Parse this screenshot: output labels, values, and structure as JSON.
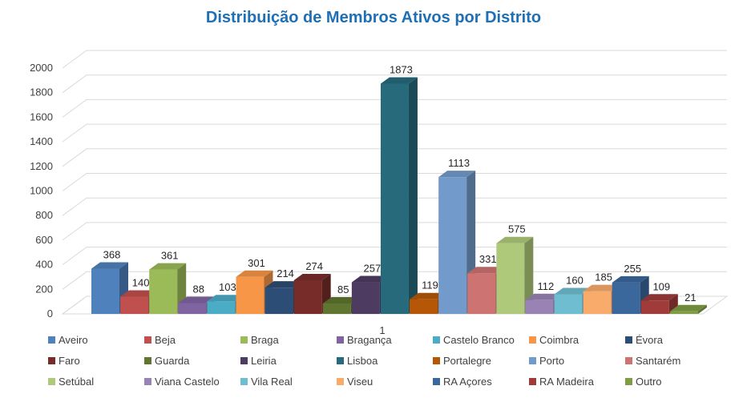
{
  "chart_data": {
    "type": "bar",
    "title": "Distribuição de Membros Ativos por Distrito",
    "xlabel": "",
    "ylabel": "",
    "categories": [
      "1"
    ],
    "ylim": [
      0,
      2000
    ],
    "yticks": [
      0,
      200,
      400,
      600,
      800,
      1000,
      1200,
      1400,
      1600,
      1800,
      2000
    ],
    "grid": true,
    "legend_position": "bottom",
    "series": [
      {
        "name": "Aveiro",
        "values": [
          368
        ],
        "color": "#4f81bd"
      },
      {
        "name": "Beja",
        "values": [
          140
        ],
        "color": "#c0504d"
      },
      {
        "name": "Braga",
        "values": [
          361
        ],
        "color": "#9bbb59"
      },
      {
        "name": "Bragança",
        "values": [
          88
        ],
        "color": "#8064a2"
      },
      {
        "name": "Castelo Branco",
        "values": [
          103
        ],
        "color": "#4bacc6"
      },
      {
        "name": "Coimbra",
        "values": [
          301
        ],
        "color": "#f79646"
      },
      {
        "name": "Évora",
        "values": [
          214
        ],
        "color": "#2c4d75"
      },
      {
        "name": "Faro",
        "values": [
          274
        ],
        "color": "#772c2a"
      },
      {
        "name": "Guarda",
        "values": [
          85
        ],
        "color": "#5f7530"
      },
      {
        "name": "Leiria",
        "values": [
          257
        ],
        "color": "#4d3b62"
      },
      {
        "name": "Lisboa",
        "values": [
          1873
        ],
        "color": "#276a7c"
      },
      {
        "name": "Portalegre",
        "values": [
          119
        ],
        "color": "#b65708"
      },
      {
        "name": "Porto",
        "values": [
          1113
        ],
        "color": "#729aca"
      },
      {
        "name": "Santarém",
        "values": [
          331
        ],
        "color": "#cd7371"
      },
      {
        "name": "Setúbal",
        "values": [
          575
        ],
        "color": "#afc97a"
      },
      {
        "name": "Viana Castelo",
        "values": [
          112
        ],
        "color": "#9983b5"
      },
      {
        "name": "Vila Real",
        "values": [
          160
        ],
        "color": "#6fbdd1"
      },
      {
        "name": "Viseu",
        "values": [
          185
        ],
        "color": "#f9ab6b"
      },
      {
        "name": "RA Açores",
        "values": [
          255
        ],
        "color": "#3a679c"
      },
      {
        "name": "RA Madeira",
        "values": [
          109
        ],
        "color": "#9f3b38"
      },
      {
        "name": "Outro",
        "values": [
          21
        ],
        "color": "#7f9d43"
      }
    ]
  }
}
